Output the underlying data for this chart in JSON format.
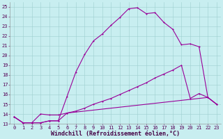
{
  "bg_color": "#c8eef0",
  "line_color": "#990099",
  "grid_color": "#9dcfcf",
  "xlabel": "Windchill (Refroidissement éolien,°C)",
  "xlim": [
    -0.5,
    23.5
  ],
  "ylim": [
    13,
    25.5
  ],
  "xticks": [
    0,
    1,
    2,
    3,
    4,
    5,
    6,
    7,
    8,
    9,
    10,
    11,
    12,
    13,
    14,
    15,
    16,
    17,
    18,
    19,
    20,
    21,
    22,
    23
  ],
  "yticks": [
    13,
    14,
    15,
    16,
    17,
    18,
    19,
    20,
    21,
    22,
    23,
    24,
    25
  ],
  "line1_x": [
    0,
    1,
    2,
    3,
    4,
    5,
    6,
    7,
    8,
    9,
    10,
    11,
    12,
    13,
    14,
    15,
    16,
    17,
    18,
    19,
    20,
    21,
    22,
    23
  ],
  "line1_y": [
    13.7,
    13.1,
    13.1,
    13.1,
    13.3,
    13.3,
    15.8,
    18.3,
    20.1,
    21.5,
    22.2,
    23.1,
    23.9,
    24.8,
    24.9,
    24.3,
    24.4,
    23.4,
    22.7,
    21.1,
    21.2,
    20.9,
    15.7,
    15.0
  ],
  "line2_x": [
    0,
    1,
    2,
    3,
    4,
    5,
    6,
    7,
    8,
    9,
    10,
    11,
    12,
    13,
    14,
    15,
    16,
    17,
    18,
    19,
    20,
    21,
    22,
    23
  ],
  "line2_y": [
    13.7,
    13.1,
    13.1,
    13.1,
    13.3,
    13.3,
    14.1,
    14.3,
    14.6,
    15.0,
    15.3,
    15.6,
    16.0,
    16.4,
    16.8,
    17.2,
    17.7,
    18.1,
    18.5,
    19.0,
    15.6,
    16.1,
    15.7,
    15.0
  ],
  "line3_x": [
    0,
    1,
    2,
    3,
    4,
    5,
    6,
    22,
    23
  ],
  "line3_y": [
    13.7,
    13.1,
    13.1,
    14.0,
    13.9,
    13.9,
    14.1,
    15.7,
    15.0
  ],
  "marker_size": 2.0,
  "linewidth": 0.8,
  "tick_fontsize": 5.0,
  "xlabel_fontsize": 6.0
}
